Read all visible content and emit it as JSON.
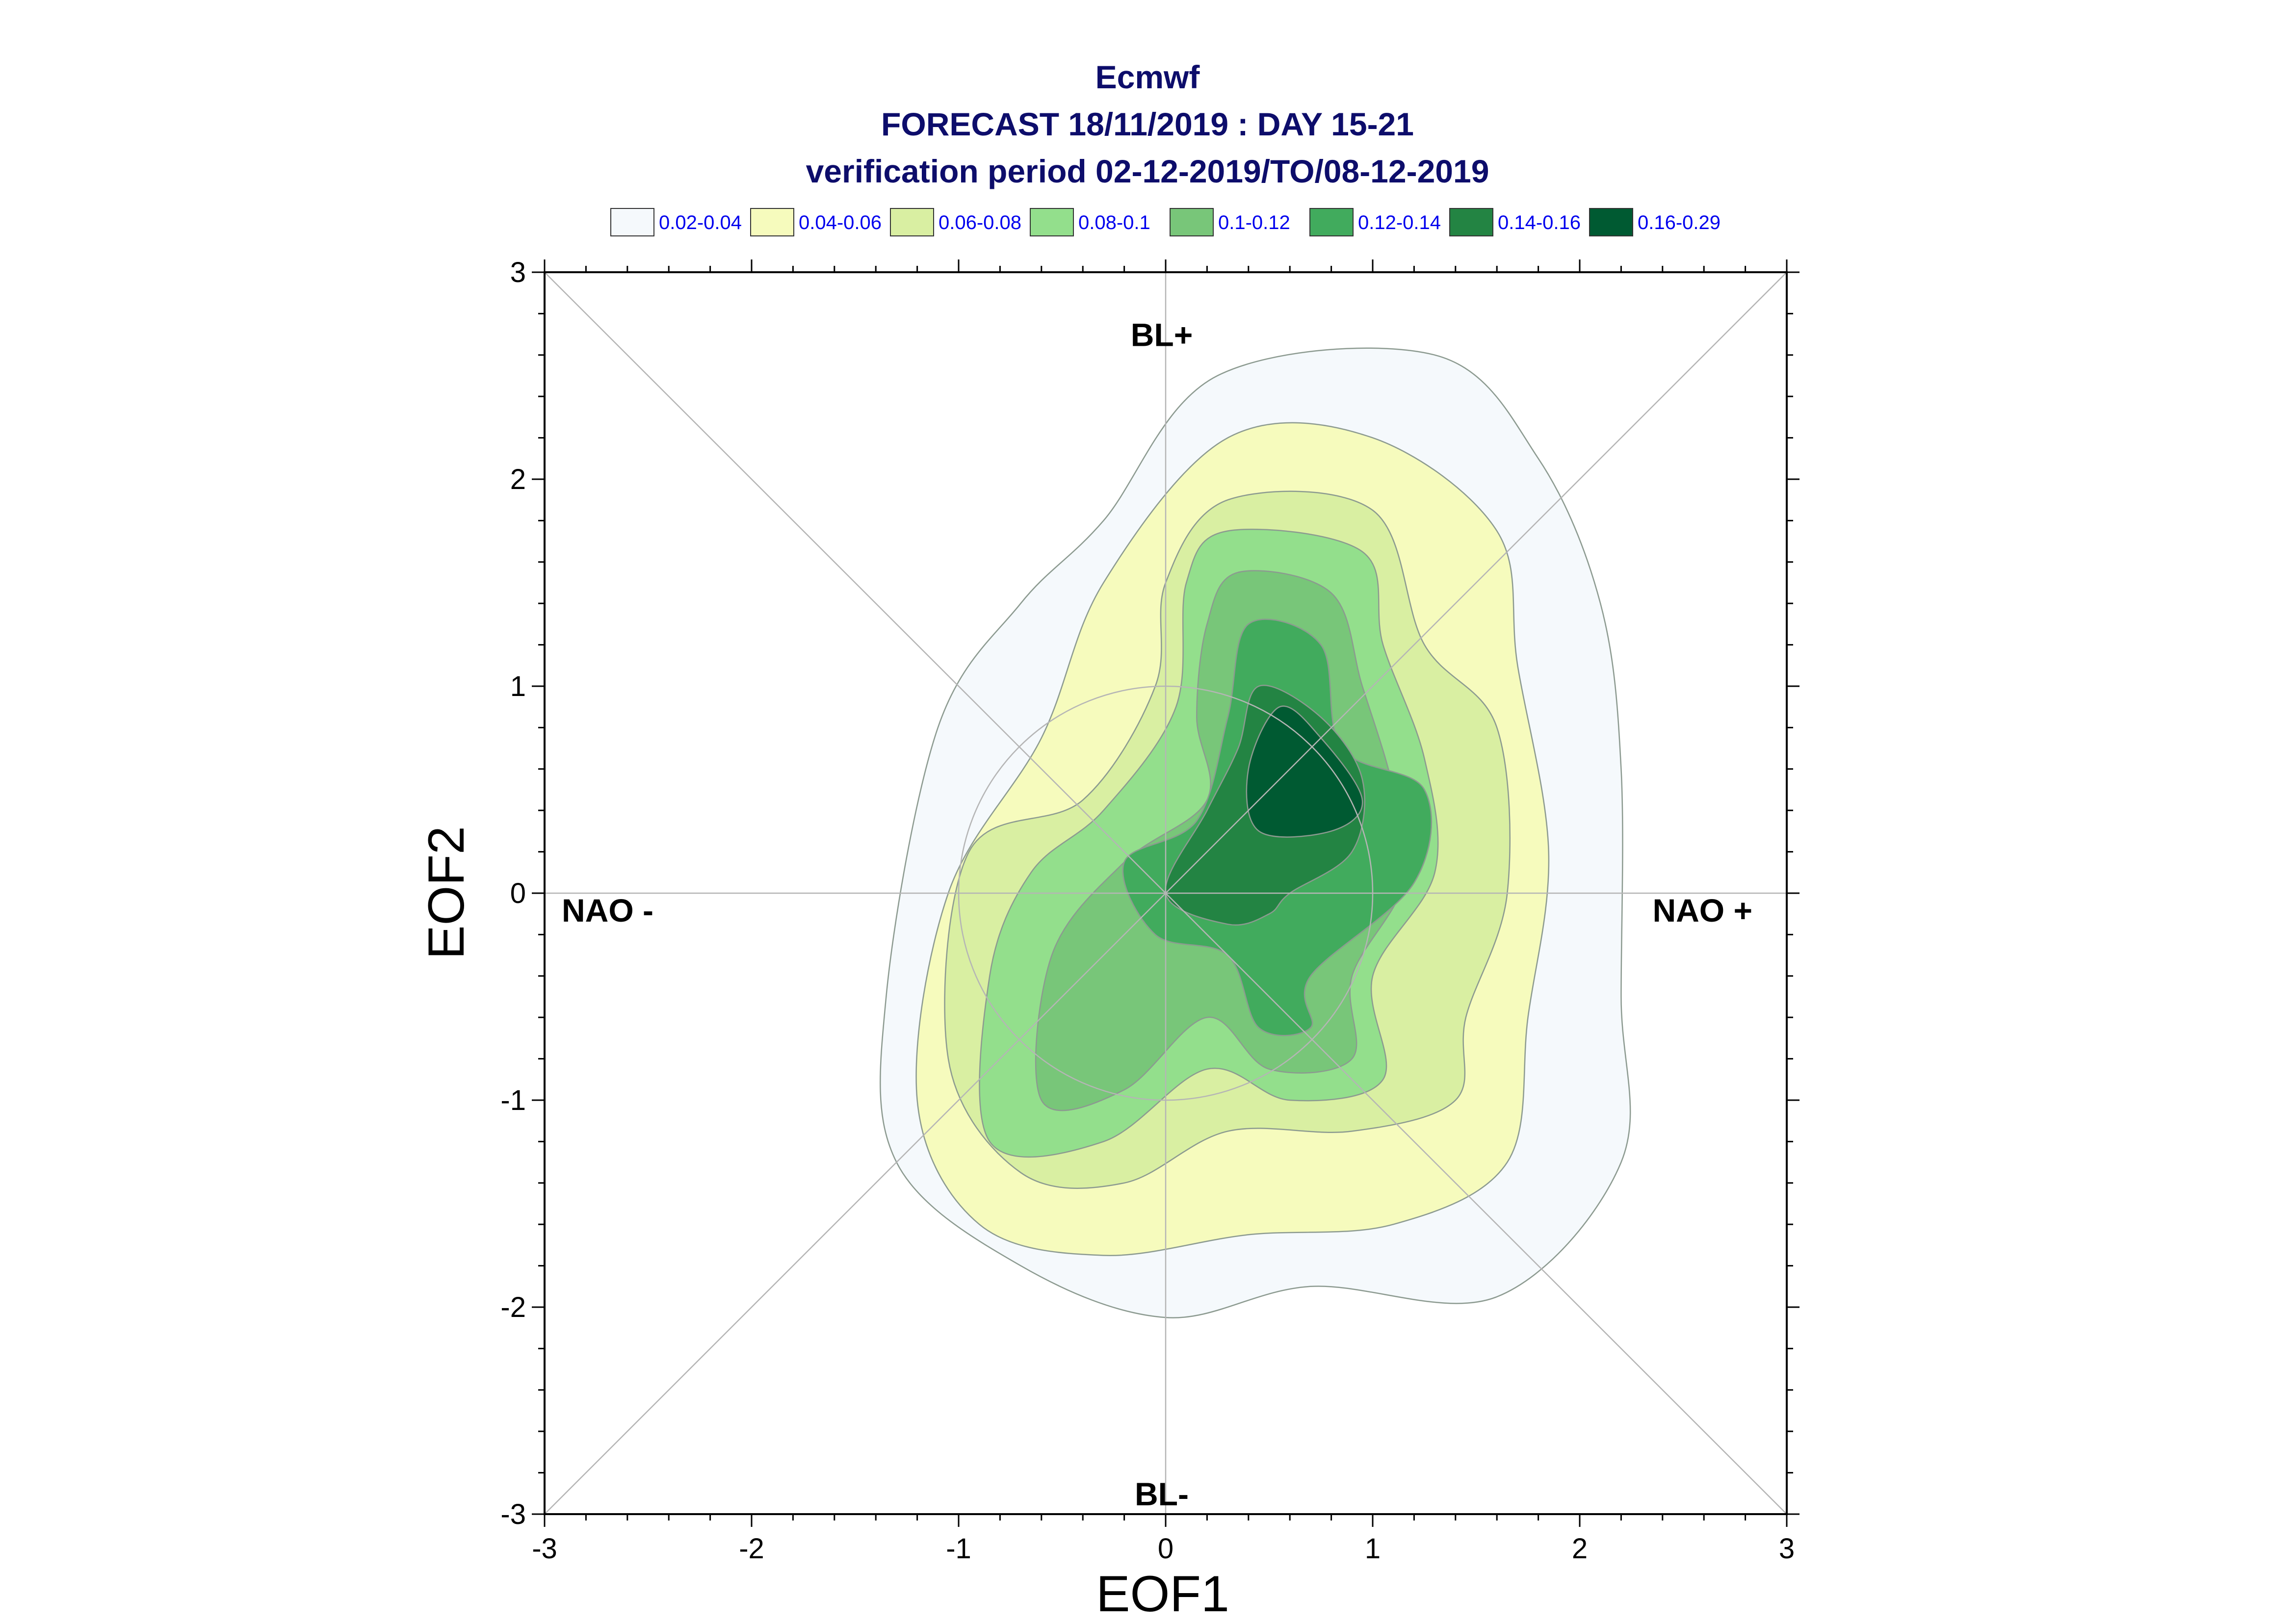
{
  "chart_data": {
    "type": "contour",
    "title_lines": [
      "Ecmwf",
      "FORECAST 18/11/2019 : DAY 15-21",
      "verification period 02-12-2019/TO/08-12-2019"
    ],
    "xlabel": "EOF1",
    "ylabel": "EOF2",
    "xlim": [
      -3,
      3
    ],
    "ylim": [
      -3,
      3
    ],
    "x_ticks": [
      "-3",
      "-2",
      "-1",
      "0",
      "1",
      "2",
      "3"
    ],
    "y_ticks": [
      "-3",
      "-2",
      "-1",
      "0",
      "1",
      "2",
      "3"
    ],
    "grid": "axes cross at 0, diagonals and unit circle",
    "regions": {
      "top": "BL+",
      "bottom": "BL-",
      "left": "NAO -",
      "right": "NAO +"
    },
    "legend": [
      {
        "label": "0.02-0.04",
        "color": "#f5f9fc"
      },
      {
        "label": "0.04-0.06",
        "color": "#f6fbbd"
      },
      {
        "label": "0.06-0.08",
        "color": "#d9efa2"
      },
      {
        "label": "0.08-0.1",
        "color": "#93df8c"
      },
      {
        "label": "0.1-0.12",
        "color": "#78c679"
      },
      {
        "label": "0.12-0.14",
        "color": "#41ab5d"
      },
      {
        "label": "0.14-0.16",
        "color": "#238443"
      },
      {
        "label": "0.16-0.29",
        "color": "#005a32"
      }
    ],
    "contours": [
      {
        "level": "0.02-0.04",
        "points": [
          [
            0.25,
            2.5
          ],
          [
            1.3,
            2.6
          ],
          [
            1.8,
            2.1
          ],
          [
            2.1,
            1.4
          ],
          [
            2.2,
            0.6
          ],
          [
            2.2,
            -0.5
          ],
          [
            2.2,
            -1.3
          ],
          [
            1.6,
            -1.95
          ],
          [
            0.7,
            -1.9
          ],
          [
            0,
            -2.05
          ],
          [
            -0.7,
            -1.8
          ],
          [
            -1.3,
            -1.3
          ],
          [
            -1.35,
            -0.5
          ],
          [
            -1.1,
            0.8
          ],
          [
            -0.7,
            1.4
          ],
          [
            -0.3,
            1.8
          ]
        ]
      },
      {
        "level": "0.04-0.06",
        "points": [
          [
            0.3,
            2.2
          ],
          [
            1.0,
            2.2
          ],
          [
            1.6,
            1.75
          ],
          [
            1.7,
            1.1
          ],
          [
            1.85,
            0.2
          ],
          [
            1.75,
            -0.6
          ],
          [
            1.65,
            -1.3
          ],
          [
            1.1,
            -1.6
          ],
          [
            0.4,
            -1.65
          ],
          [
            -0.3,
            -1.75
          ],
          [
            -0.9,
            -1.6
          ],
          [
            -1.2,
            -1.0
          ],
          [
            -1.05,
            0
          ],
          [
            -0.6,
            0.75
          ],
          [
            -0.3,
            1.5
          ]
        ]
      },
      {
        "level": "0.06-0.08",
        "points": [
          [
            0.3,
            1.9
          ],
          [
            1.0,
            1.85
          ],
          [
            1.25,
            1.2
          ],
          [
            1.6,
            0.8
          ],
          [
            1.65,
            0.0
          ],
          [
            1.45,
            -0.6
          ],
          [
            1.4,
            -1.0
          ],
          [
            0.9,
            -1.15
          ],
          [
            0.3,
            -1.15
          ],
          [
            -0.2,
            -1.4
          ],
          [
            -0.7,
            -1.35
          ],
          [
            -1.05,
            -0.8
          ],
          [
            -0.95,
            0.2
          ],
          [
            -0.4,
            0.45
          ],
          [
            -0.05,
            1.0
          ],
          [
            0,
            1.5
          ]
        ]
      },
      {
        "level": "0.08-0.1",
        "points": [
          [
            0.3,
            1.75
          ],
          [
            0.95,
            1.65
          ],
          [
            1.05,
            1.2
          ],
          [
            1.25,
            0.65
          ],
          [
            1.3,
            0.1
          ],
          [
            1.0,
            -0.4
          ],
          [
            1.05,
            -0.9
          ],
          [
            0.6,
            -1.0
          ],
          [
            0.2,
            -0.85
          ],
          [
            -0.3,
            -1.2
          ],
          [
            -0.85,
            -1.2
          ],
          [
            -0.85,
            -0.4
          ],
          [
            -0.65,
            0.1
          ],
          [
            -0.3,
            0.4
          ],
          [
            0.05,
            0.9
          ],
          [
            0.1,
            1.5
          ]
        ]
      },
      {
        "level": "0.1-0.12",
        "points": [
          [
            0.35,
            1.55
          ],
          [
            0.8,
            1.45
          ],
          [
            0.95,
            1.0
          ],
          [
            1.1,
            0.5
          ],
          [
            1.15,
            0.05
          ],
          [
            0.9,
            -0.4
          ],
          [
            0.9,
            -0.8
          ],
          [
            0.5,
            -0.85
          ],
          [
            0.2,
            -0.6
          ],
          [
            -0.2,
            -0.95
          ],
          [
            -0.6,
            -1.0
          ],
          [
            -0.55,
            -0.3
          ],
          [
            -0.2,
            0.15
          ],
          [
            0.2,
            0.45
          ],
          [
            0.15,
            0.85
          ],
          [
            0.2,
            1.3
          ]
        ]
      },
      {
        "level": "0.12-0.14",
        "points": [
          [
            0.4,
            1.3
          ],
          [
            0.75,
            1.2
          ],
          [
            0.85,
            0.7
          ],
          [
            1.25,
            0.5
          ],
          [
            1.2,
            0.05
          ],
          [
            0.7,
            -0.4
          ],
          [
            0.7,
            -0.65
          ],
          [
            0.45,
            -0.65
          ],
          [
            0.3,
            -0.3
          ],
          [
            -0.05,
            -0.2
          ],
          [
            -0.2,
            0.15
          ],
          [
            0.15,
            0.35
          ],
          [
            0.3,
            0.85
          ]
        ]
      },
      {
        "level": "0.14-0.16",
        "points": [
          [
            0.45,
            1.0
          ],
          [
            0.75,
            0.85
          ],
          [
            0.95,
            0.55
          ],
          [
            0.9,
            0.2
          ],
          [
            0.6,
            0.0
          ],
          [
            0.5,
            -0.1
          ],
          [
            0.3,
            -0.15
          ],
          [
            0.0,
            0.0
          ],
          [
            0.2,
            0.4
          ],
          [
            0.35,
            0.7
          ]
        ]
      },
      {
        "level": "0.16-0.29",
        "points": [
          [
            0.55,
            0.9
          ],
          [
            0.75,
            0.75
          ],
          [
            0.95,
            0.45
          ],
          [
            0.8,
            0.3
          ],
          [
            0.45,
            0.3
          ],
          [
            0.4,
            0.6
          ]
        ]
      }
    ]
  }
}
